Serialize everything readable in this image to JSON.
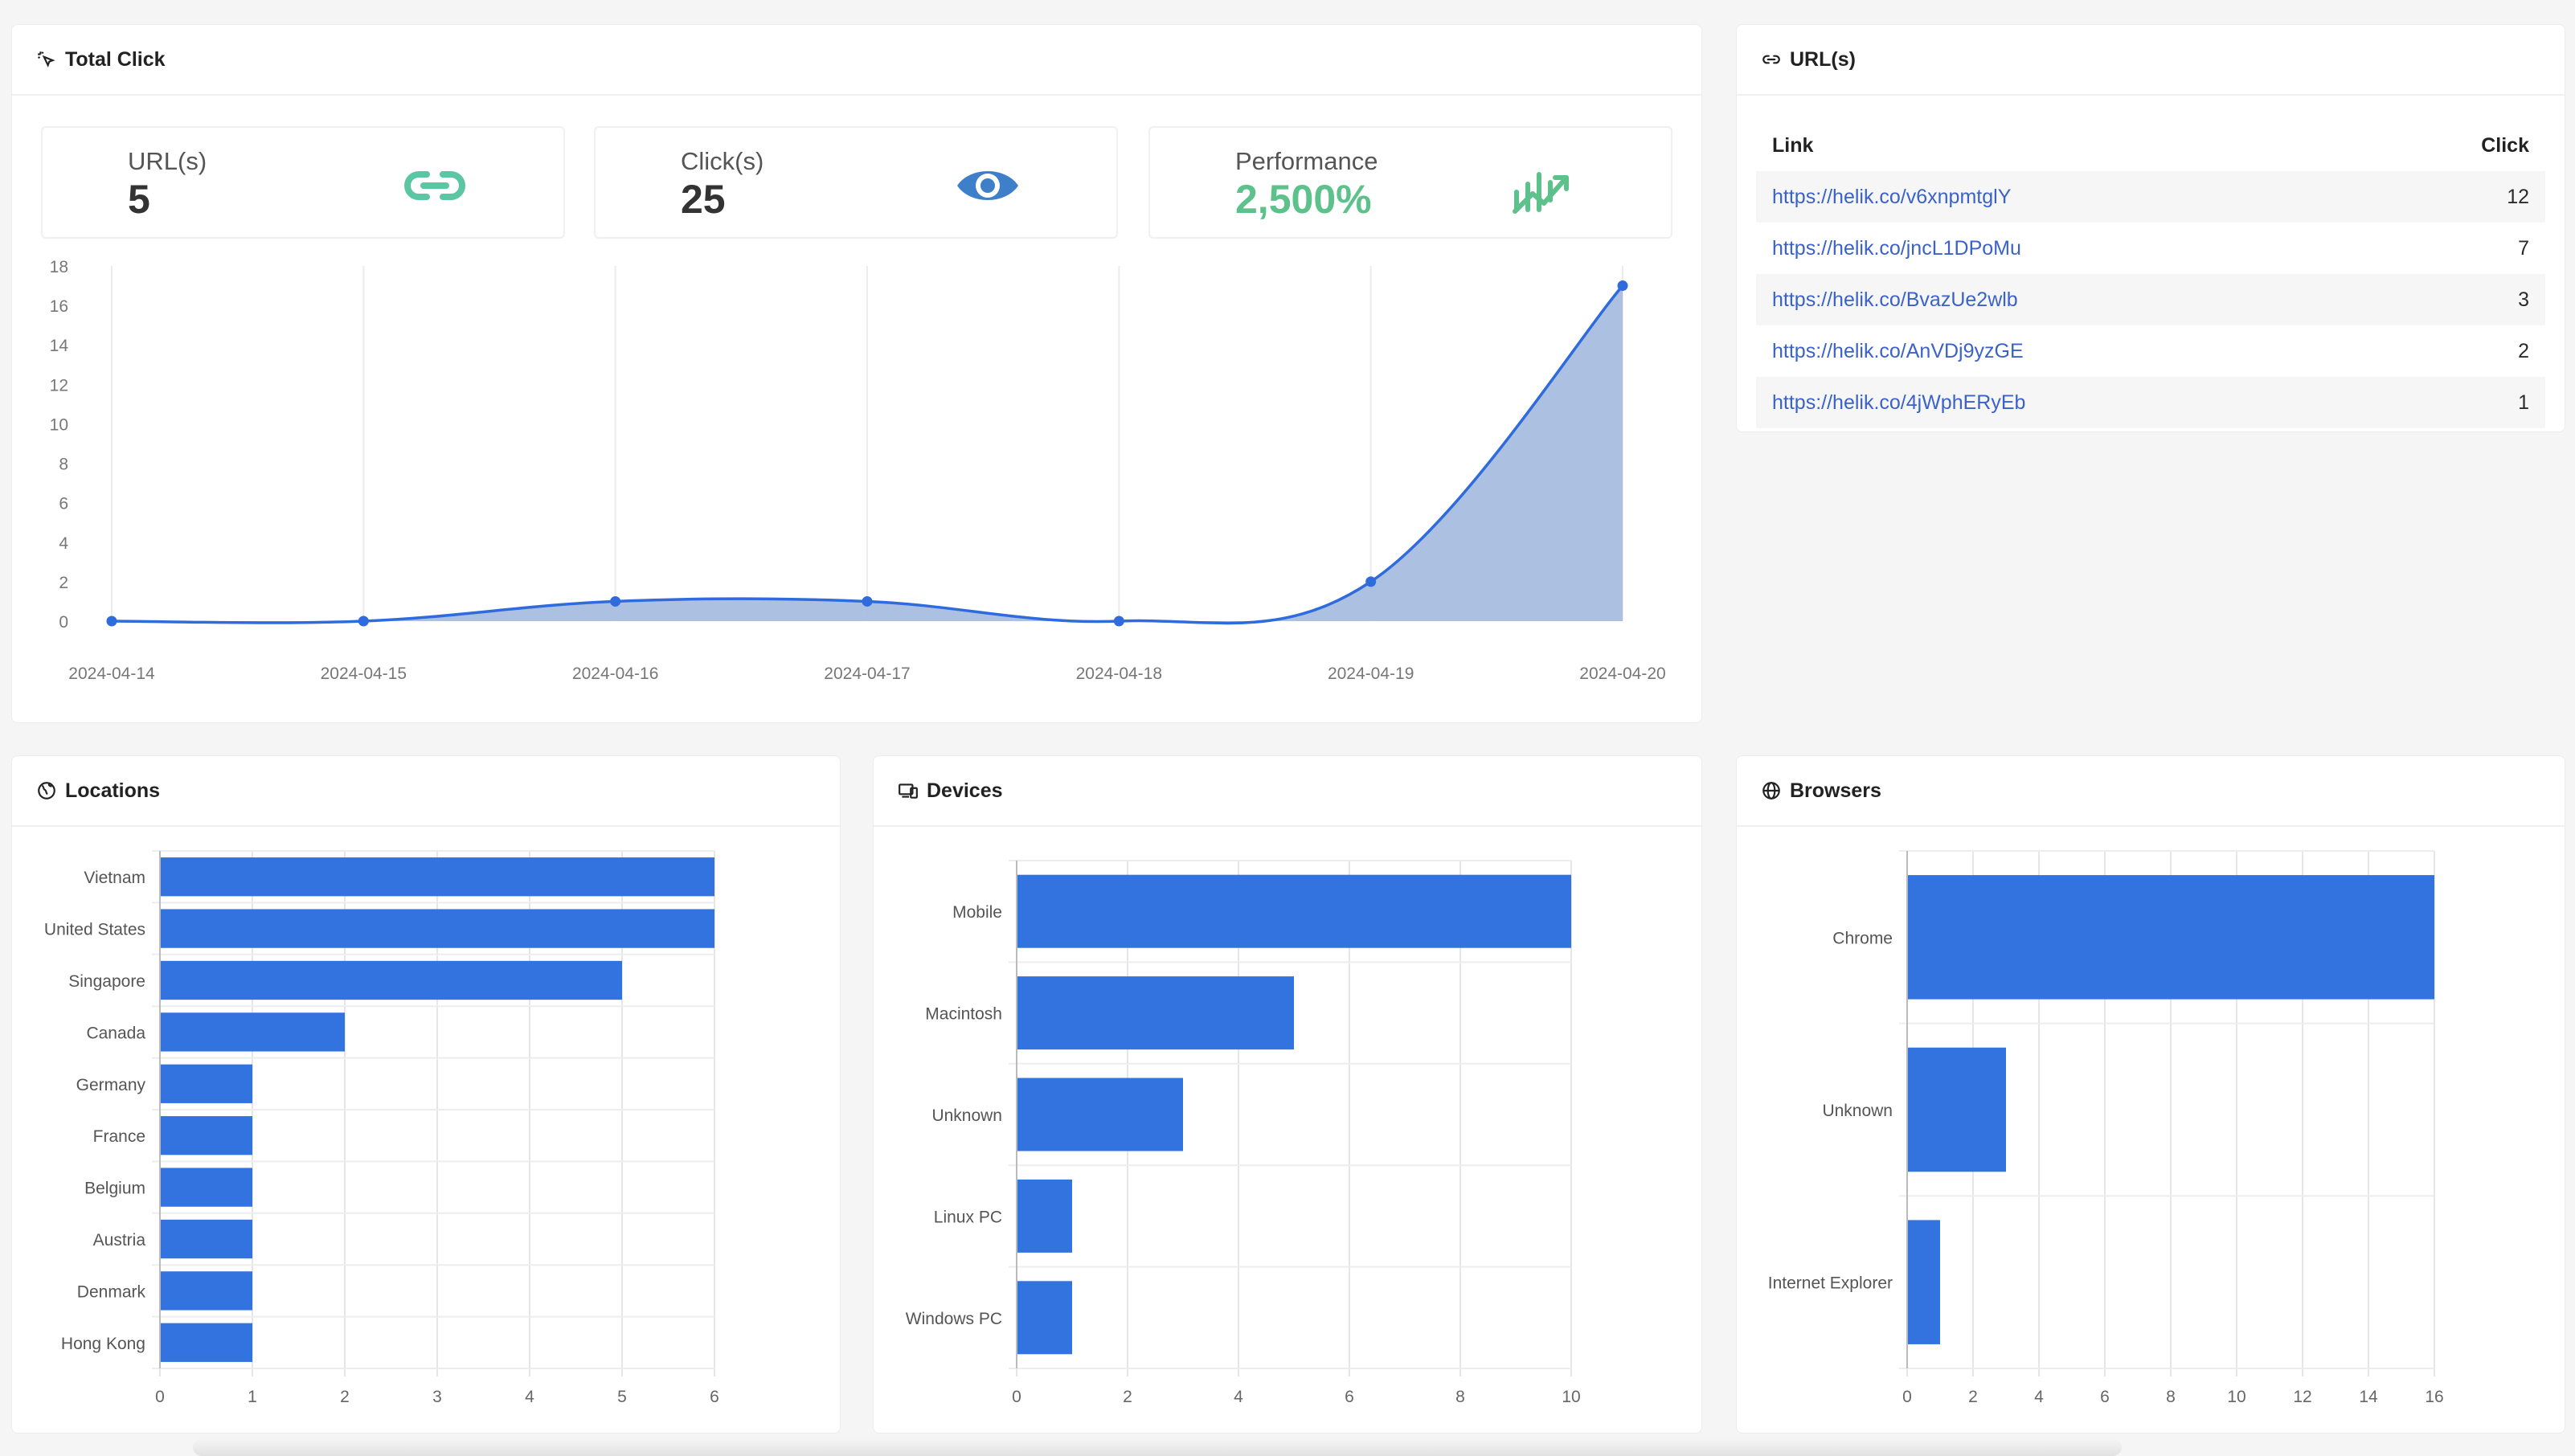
{
  "total_click": {
    "title": "Total Click",
    "stats": [
      {
        "label": "URL(s)",
        "value": "5",
        "icon": "link-icon",
        "color": "#5cc6a3"
      },
      {
        "label": "Click(s)",
        "value": "25",
        "icon": "eye-icon",
        "color": "#3d7fc8"
      },
      {
        "label": "Performance",
        "value": "2,500%",
        "icon": "trending-up-icon",
        "color": "#5cc18a"
      }
    ],
    "chart_data": {
      "type": "area",
      "x": [
        "2024-04-14",
        "2024-04-15",
        "2024-04-16",
        "2024-04-17",
        "2024-04-18",
        "2024-04-19",
        "2024-04-20"
      ],
      "values": [
        0,
        0,
        1,
        1,
        0,
        2,
        17
      ],
      "ylim": [
        0,
        18
      ],
      "yticks": [
        "0",
        "2",
        "4",
        "6",
        "8",
        "10",
        "12",
        "14",
        "16",
        "18"
      ],
      "color": "#2f6bdc",
      "fill": "#a8bde0",
      "grid": "vertical"
    }
  },
  "urls": {
    "title": "URL(s)",
    "col_link": "Link",
    "col_click": "Click",
    "rows": [
      {
        "link": "https://helik.co/v6xnpmtglY",
        "click": "12"
      },
      {
        "link": "https://helik.co/jncL1DPoMu",
        "click": "7"
      },
      {
        "link": "https://helik.co/BvazUe2wlb",
        "click": "3"
      },
      {
        "link": "https://helik.co/AnVDj9yzGE",
        "click": "2"
      },
      {
        "link": "https://helik.co/4jWphERyEb",
        "click": "1"
      }
    ]
  },
  "locations": {
    "title": "Locations",
    "chart_data": {
      "type": "bar",
      "orientation": "horizontal",
      "categories": [
        "Vietnam",
        "United States",
        "Singapore",
        "Canada",
        "Germany",
        "France",
        "Belgium",
        "Austria",
        "Denmark",
        "Hong Kong"
      ],
      "values": [
        6,
        6,
        5,
        2,
        1,
        1,
        1,
        1,
        1,
        1
      ],
      "xlim": [
        0,
        6
      ],
      "xticks": [
        "0",
        "1",
        "2",
        "3",
        "4",
        "5",
        "6"
      ],
      "color": "#3373e0"
    }
  },
  "devices": {
    "title": "Devices",
    "chart_data": {
      "type": "bar",
      "orientation": "horizontal",
      "categories": [
        "Mobile",
        "Macintosh",
        "Unknown",
        "Linux PC",
        "Windows PC"
      ],
      "values": [
        10,
        5,
        3,
        1,
        1
      ],
      "xlim": [
        0,
        10
      ],
      "xticks": [
        "0",
        "2",
        "4",
        "6",
        "8",
        "10"
      ],
      "color": "#3373e0"
    }
  },
  "browsers": {
    "title": "Browsers",
    "chart_data": {
      "type": "bar",
      "orientation": "horizontal",
      "categories": [
        "Chrome",
        "Unknown",
        "Internet Explorer"
      ],
      "values": [
        16,
        3,
        1
      ],
      "xlim": [
        0,
        16
      ],
      "xticks": [
        "0",
        "2",
        "4",
        "6",
        "8",
        "10",
        "12",
        "14",
        "16"
      ],
      "color": "#3373e0"
    }
  }
}
